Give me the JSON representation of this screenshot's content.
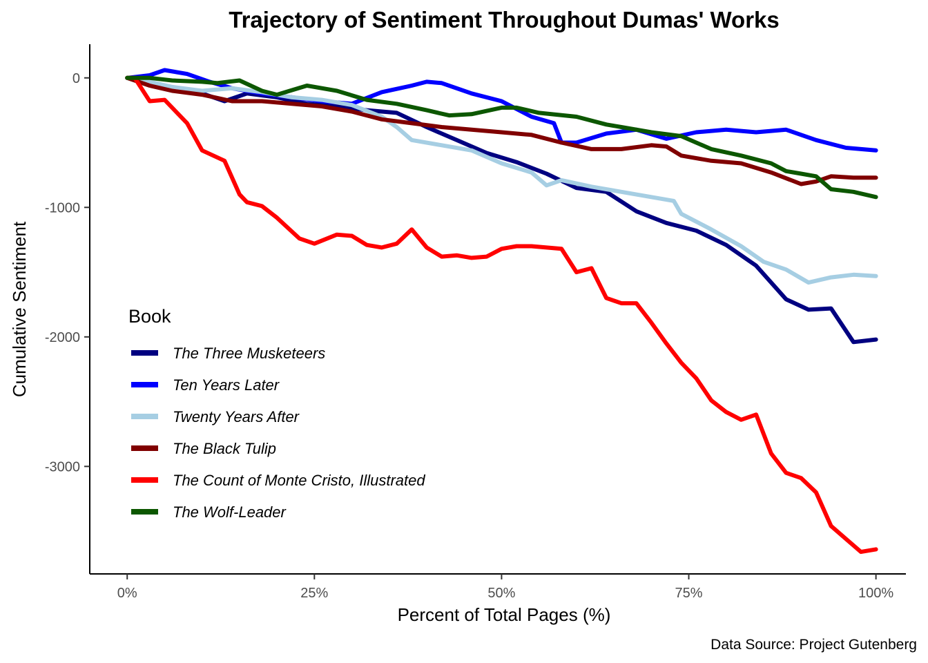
{
  "chart_data": {
    "type": "line",
    "title": "Trajectory of Sentiment Throughout Dumas' Works",
    "xlabel": "Percent of Total Pages (%)",
    "ylabel": "Cumulative Sentiment",
    "caption": "Data Source: Project Gutenberg",
    "xlim": [
      -5,
      104
    ],
    "ylim": [
      -3830,
      260
    ],
    "x_ticks": [
      0,
      25,
      50,
      75,
      100
    ],
    "x_tick_labels": [
      "0%",
      "25%",
      "50%",
      "75%",
      "100%"
    ],
    "y_ticks": [
      0,
      -1000,
      -2000,
      -3000
    ],
    "y_tick_labels": [
      "0",
      "-1000",
      "-2000",
      "-3000"
    ],
    "grid": false,
    "legend_title": "Book",
    "legend_position": "left-inside",
    "series": [
      {
        "name": "The Three Musketeers",
        "color": "#000080",
        "x": [
          0,
          3,
          6,
          10,
          13,
          16,
          20,
          24,
          28,
          32,
          36,
          40,
          44,
          48,
          52,
          56,
          60,
          64,
          68,
          72,
          76,
          80,
          84,
          88,
          91,
          94,
          97,
          100
        ],
        "y": [
          0,
          -40,
          -90,
          -120,
          -180,
          -120,
          -150,
          -200,
          -220,
          -250,
          -270,
          -380,
          -480,
          -580,
          -650,
          -740,
          -850,
          -880,
          -1030,
          -1120,
          -1180,
          -1290,
          -1450,
          -1710,
          -1790,
          -1780,
          -2040,
          -2020
        ]
      },
      {
        "name": "Ten Years Later",
        "color": "#0000FF",
        "x": [
          0,
          3,
          5,
          8,
          11,
          14,
          18,
          22,
          26,
          30,
          34,
          38,
          40,
          42,
          46,
          50,
          54,
          57,
          58,
          60,
          64,
          68,
          72,
          76,
          80,
          84,
          88,
          92,
          96,
          100
        ],
        "y": [
          0,
          20,
          60,
          30,
          -30,
          -80,
          -120,
          -150,
          -180,
          -200,
          -110,
          -60,
          -30,
          -40,
          -120,
          -180,
          -300,
          -350,
          -500,
          -500,
          -430,
          -400,
          -470,
          -420,
          -400,
          -420,
          -400,
          -480,
          -540,
          -560
        ]
      },
      {
        "name": "Twenty Years After",
        "color": "#A6CEE3",
        "x": [
          0,
          3,
          6,
          10,
          14,
          18,
          22,
          26,
          30,
          34,
          36,
          38,
          42,
          46,
          50,
          54,
          56,
          58,
          62,
          66,
          70,
          73,
          74,
          78,
          82,
          85,
          88,
          91,
          94,
          97,
          100
        ],
        "y": [
          0,
          -30,
          -70,
          -100,
          -80,
          -110,
          -150,
          -170,
          -210,
          -300,
          -380,
          -480,
          -520,
          -560,
          -660,
          -730,
          -830,
          -790,
          -840,
          -880,
          -920,
          -950,
          -1050,
          -1170,
          -1300,
          -1420,
          -1480,
          -1580,
          -1540,
          -1520,
          -1530
        ]
      },
      {
        "name": "The Black Tulip",
        "color": "#800000",
        "x": [
          0,
          3,
          6,
          10,
          14,
          18,
          22,
          26,
          30,
          34,
          38,
          42,
          46,
          50,
          54,
          58,
          62,
          66,
          70,
          72,
          74,
          78,
          82,
          86,
          90,
          92,
          94,
          97,
          100
        ],
        "y": [
          0,
          -60,
          -100,
          -130,
          -180,
          -180,
          -200,
          -220,
          -260,
          -320,
          -350,
          -380,
          -400,
          -420,
          -440,
          -500,
          -550,
          -550,
          -520,
          -530,
          -600,
          -640,
          -660,
          -730,
          -820,
          -800,
          -760,
          -770,
          -770
        ]
      },
      {
        "name": "The Count of Monte Cristo, Illustrated",
        "color": "#FF0000",
        "x": [
          0,
          1,
          3,
          5,
          8,
          10,
          13,
          15,
          16,
          18,
          20,
          23,
          25,
          28,
          30,
          32,
          34,
          36,
          38,
          40,
          42,
          44,
          46,
          48,
          50,
          52,
          54,
          56,
          58,
          60,
          62,
          64,
          66,
          68,
          70,
          72,
          74,
          76,
          78,
          80,
          82,
          84,
          86,
          88,
          90,
          92,
          94,
          96,
          98,
          100
        ],
        "y": [
          0,
          0,
          -180,
          -170,
          -350,
          -560,
          -640,
          -900,
          -960,
          -990,
          -1080,
          -1240,
          -1280,
          -1210,
          -1220,
          -1290,
          -1310,
          -1280,
          -1170,
          -1310,
          -1380,
          -1370,
          -1390,
          -1380,
          -1320,
          -1300,
          -1300,
          -1310,
          -1320,
          -1500,
          -1470,
          -1700,
          -1740,
          -1740,
          -1890,
          -2050,
          -2200,
          -2320,
          -2490,
          -2580,
          -2640,
          -2600,
          -2900,
          -3050,
          -3090,
          -3200,
          -3460,
          -3560,
          -3660,
          -3640
        ]
      },
      {
        "name": "The Wolf-Leader",
        "color": "#0C5700",
        "x": [
          0,
          3,
          6,
          10,
          12,
          15,
          18,
          20,
          24,
          28,
          32,
          36,
          40,
          43,
          46,
          50,
          52,
          55,
          60,
          64,
          66,
          70,
          74,
          78,
          82,
          86,
          88,
          90,
          92,
          94,
          97,
          100
        ],
        "y": [
          0,
          0,
          -20,
          -30,
          -40,
          -20,
          -100,
          -130,
          -60,
          -100,
          -170,
          -200,
          -250,
          -290,
          -280,
          -230,
          -230,
          -270,
          -300,
          -360,
          -380,
          -420,
          -450,
          -550,
          -600,
          -660,
          -720,
          -740,
          -760,
          -860,
          -880,
          -920
        ]
      }
    ]
  }
}
